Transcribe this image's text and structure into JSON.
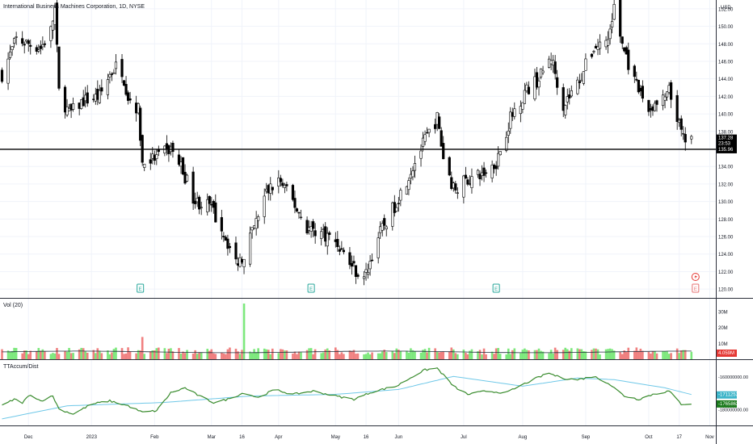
{
  "header": {
    "symbol_line": "International Business Machines Corporation, 1D, NYSE",
    "currency": "USD"
  },
  "panels": {
    "volume_label": "Vol (20)",
    "accum_label": "TTAccum/Dist"
  },
  "colors": {
    "up": "#26a69a",
    "down": "#ef5350",
    "vol_up": "#7ce87c",
    "vol_down": "#f08080",
    "accum": "#3a8c2e",
    "accum_ma": "#6fc8e8"
  },
  "chart_data": [
    {
      "type": "candlestick",
      "title": "International Business Machines Corporation, 1D, NYSE",
      "y_unit": "USD",
      "ylim": [
        119,
        153
      ],
      "y_ticks": [
        "152.00",
        "150.00",
        "148.00",
        "146.00",
        "144.00",
        "142.00",
        "140.00",
        "138.00",
        "136.00",
        "134.00",
        "132.00",
        "130.00",
        "128.00",
        "126.00",
        "124.00",
        "122.00",
        "120.00"
      ],
      "x_tick_labels": [
        "Dec",
        "2023",
        "Feb",
        "Mar",
        "16",
        "Apr",
        "May",
        "16",
        "Jun",
        "Jul",
        "Aug",
        "Sep",
        "Oct",
        "17",
        "Nov"
      ],
      "last_price": "137.28",
      "countdown": "23:53",
      "horizontal_line": "135.96",
      "earnings_markers": [
        "E",
        "E",
        "E",
        "E"
      ],
      "close_path": [
        {
          "date": "2022-11-18",
          "close": 144.5
        },
        {
          "date": "2022-11-25",
          "close": 148.5
        },
        {
          "date": "2022-12-01",
          "close": 148.0
        },
        {
          "date": "2022-12-07",
          "close": 147.5
        },
        {
          "date": "2022-12-12",
          "close": 149.5
        },
        {
          "date": "2022-12-14",
          "close": 152.0
        },
        {
          "date": "2022-12-16",
          "close": 142.5
        },
        {
          "date": "2022-12-21",
          "close": 140.0
        },
        {
          "date": "2022-12-28",
          "close": 141.5
        },
        {
          "date": "2023-01-05",
          "close": 142.0
        },
        {
          "date": "2023-01-10",
          "close": 144.5
        },
        {
          "date": "2023-01-15",
          "close": 146.0
        },
        {
          "date": "2023-01-19",
          "close": 142.0
        },
        {
          "date": "2023-01-24",
          "close": 140.5
        },
        {
          "date": "2023-01-26",
          "close": 134.5
        },
        {
          "date": "2023-02-02",
          "close": 135.0
        },
        {
          "date": "2023-02-09",
          "close": 136.0
        },
        {
          "date": "2023-02-14",
          "close": 134.0
        },
        {
          "date": "2023-02-21",
          "close": 130.0
        },
        {
          "date": "2023-02-28",
          "close": 129.5
        },
        {
          "date": "2023-03-06",
          "close": 127.0
        },
        {
          "date": "2023-03-13",
          "close": 123.0
        },
        {
          "date": "2023-03-17",
          "close": 124.0
        },
        {
          "date": "2023-03-22",
          "close": 127.0
        },
        {
          "date": "2023-03-28",
          "close": 131.0
        },
        {
          "date": "2023-04-03",
          "close": 132.5
        },
        {
          "date": "2023-04-10",
          "close": 130.0
        },
        {
          "date": "2023-04-17",
          "close": 127.0
        },
        {
          "date": "2023-04-24",
          "close": 126.5
        },
        {
          "date": "2023-05-01",
          "close": 125.5
        },
        {
          "date": "2023-05-08",
          "close": 123.0
        },
        {
          "date": "2023-05-15",
          "close": 121.0
        },
        {
          "date": "2023-05-22",
          "close": 126.0
        },
        {
          "date": "2023-05-30",
          "close": 129.5
        },
        {
          "date": "2023-06-07",
          "close": 133.5
        },
        {
          "date": "2023-06-14",
          "close": 137.0
        },
        {
          "date": "2023-06-20",
          "close": 139.5
        },
        {
          "date": "2023-06-23",
          "close": 135.0
        },
        {
          "date": "2023-06-28",
          "close": 131.5
        },
        {
          "date": "2023-07-05",
          "close": 132.5
        },
        {
          "date": "2023-07-12",
          "close": 133.0
        },
        {
          "date": "2023-07-19",
          "close": 134.5
        },
        {
          "date": "2023-07-26",
          "close": 139.5
        },
        {
          "date": "2023-08-02",
          "close": 142.5
        },
        {
          "date": "2023-08-09",
          "close": 144.0
        },
        {
          "date": "2023-08-15",
          "close": 146.5
        },
        {
          "date": "2023-08-21",
          "close": 141.0
        },
        {
          "date": "2023-08-28",
          "close": 143.5
        },
        {
          "date": "2023-09-05",
          "close": 147.5
        },
        {
          "date": "2023-09-12",
          "close": 148.5
        },
        {
          "date": "2023-09-15",
          "close": 152.0
        },
        {
          "date": "2023-09-19",
          "close": 148.0
        },
        {
          "date": "2023-09-25",
          "close": 143.5
        },
        {
          "date": "2023-10-02",
          "close": 140.5
        },
        {
          "date": "2023-10-09",
          "close": 141.5
        },
        {
          "date": "2023-10-12",
          "close": 142.5
        },
        {
          "date": "2023-10-16",
          "close": 139.5
        },
        {
          "date": "2023-10-19",
          "close": 137.0
        },
        {
          "date": "2023-10-23",
          "close": 137.28
        }
      ]
    },
    {
      "type": "bar",
      "title": "Vol (20)",
      "ylim": [
        0,
        36
      ],
      "y_ticks": [
        "30M",
        "20M",
        "10M"
      ],
      "last_value": "4.059M",
      "spikes": [
        {
          "date": "2023-01-26",
          "value": 14
        },
        {
          "date": "2023-03-17",
          "value": 35
        }
      ]
    },
    {
      "type": "line",
      "title": "TTAccum/Dist",
      "y_ticks": [
        "-160000000.00",
        "-180000000.00"
      ],
      "value_labels": [
        "-171125357.13",
        "-176586268.07"
      ],
      "series_path": [
        {
          "date": "2022-11-18",
          "value": -178
        },
        {
          "date": "2022-11-24",
          "value": -174
        },
        {
          "date": "2022-11-28",
          "value": -176
        },
        {
          "date": "2022-12-02",
          "value": -171
        },
        {
          "date": "2022-12-07",
          "value": -175
        },
        {
          "date": "2022-12-13",
          "value": -172
        },
        {
          "date": "2022-12-16",
          "value": -180
        },
        {
          "date": "2022-12-23",
          "value": -183
        },
        {
          "date": "2023-01-01",
          "value": -177
        },
        {
          "date": "2023-01-10",
          "value": -175
        },
        {
          "date": "2023-01-19",
          "value": -178
        },
        {
          "date": "2023-01-26",
          "value": -182
        },
        {
          "date": "2023-02-02",
          "value": -181
        },
        {
          "date": "2023-02-09",
          "value": -170
        },
        {
          "date": "2023-02-16",
          "value": -167
        },
        {
          "date": "2023-02-23",
          "value": -172
        },
        {
          "date": "2023-03-02",
          "value": -176
        },
        {
          "date": "2023-03-09",
          "value": -174
        },
        {
          "date": "2023-03-17",
          "value": -170
        },
        {
          "date": "2023-03-24",
          "value": -173
        },
        {
          "date": "2023-04-01",
          "value": -168
        },
        {
          "date": "2023-04-10",
          "value": -171
        },
        {
          "date": "2023-04-20",
          "value": -169
        },
        {
          "date": "2023-05-01",
          "value": -172
        },
        {
          "date": "2023-05-10",
          "value": -174
        },
        {
          "date": "2023-05-20",
          "value": -169
        },
        {
          "date": "2023-05-31",
          "value": -166
        },
        {
          "date": "2023-06-08",
          "value": -160
        },
        {
          "date": "2023-06-14",
          "value": -156
        },
        {
          "date": "2023-06-20",
          "value": -155
        },
        {
          "date": "2023-06-28",
          "value": -166
        },
        {
          "date": "2023-07-05",
          "value": -171
        },
        {
          "date": "2023-07-14",
          "value": -169
        },
        {
          "date": "2023-07-24",
          "value": -170
        },
        {
          "date": "2023-08-01",
          "value": -165
        },
        {
          "date": "2023-08-08",
          "value": -161
        },
        {
          "date": "2023-08-14",
          "value": -158
        },
        {
          "date": "2023-08-20",
          "value": -161
        },
        {
          "date": "2023-08-28",
          "value": -162
        },
        {
          "date": "2023-09-05",
          "value": -160
        },
        {
          "date": "2023-09-12",
          "value": -164
        },
        {
          "date": "2023-09-20",
          "value": -172
        },
        {
          "date": "2023-09-27",
          "value": -174
        },
        {
          "date": "2023-10-04",
          "value": -171
        },
        {
          "date": "2023-10-12",
          "value": -169
        },
        {
          "date": "2023-10-18",
          "value": -177
        },
        {
          "date": "2023-10-23",
          "value": -176.6
        }
      ],
      "ma_path": [
        {
          "date": "2022-11-18",
          "value": -186
        },
        {
          "date": "2022-12-20",
          "value": -178
        },
        {
          "date": "2023-02-05",
          "value": -176
        },
        {
          "date": "2023-03-20",
          "value": -172
        },
        {
          "date": "2023-05-01",
          "value": -171
        },
        {
          "date": "2023-06-01",
          "value": -168
        },
        {
          "date": "2023-06-28",
          "value": -160
        },
        {
          "date": "2023-08-01",
          "value": -166
        },
        {
          "date": "2023-08-28",
          "value": -161
        },
        {
          "date": "2023-09-15",
          "value": -162
        },
        {
          "date": "2023-10-10",
          "value": -167
        },
        {
          "date": "2023-10-23",
          "value": -171.1
        }
      ]
    }
  ]
}
